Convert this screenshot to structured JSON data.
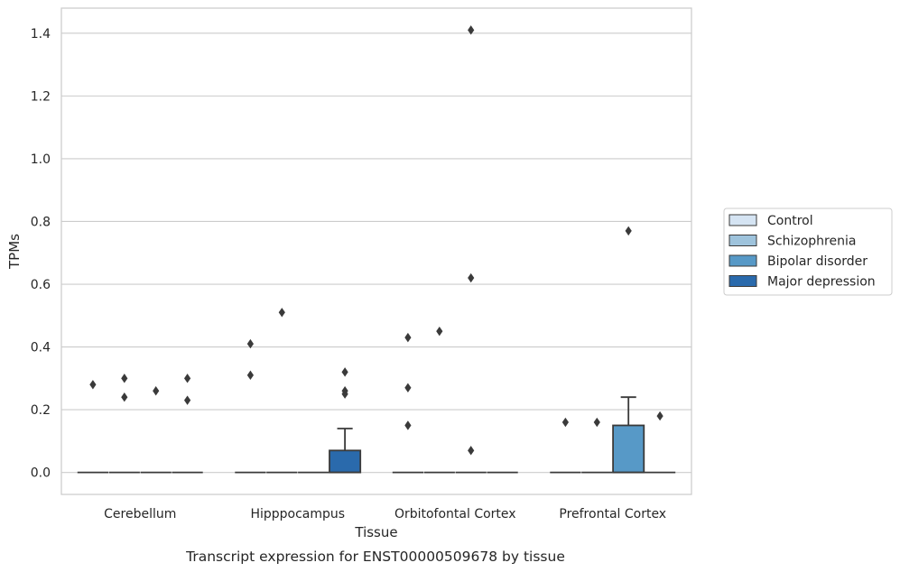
{
  "chart_data": {
    "type": "box",
    "xlabel": "Tissue",
    "ylabel": "TPMs",
    "caption": "Transcript expression for ENST00000509678 by tissue",
    "categories": [
      "Cerebellum",
      "Hipppocampus",
      "Orbitofontal Cortex",
      "Prefrontal Cortex"
    ],
    "ylim": [
      -0.07,
      1.48
    ],
    "yticks": [
      0.0,
      0.2,
      0.4,
      0.6,
      0.8,
      1.0,
      1.2,
      1.4
    ],
    "ytick_labels": [
      "0.0",
      "0.2",
      "0.4",
      "0.6",
      "0.8",
      "1.0",
      "1.2",
      "1.4"
    ],
    "grid": "horizontal",
    "legend_placement": "right",
    "series": [
      {
        "name": "Control",
        "color": "#d5e4f3",
        "boxes": [
          {
            "q1": 0,
            "median": 0,
            "q3": 0,
            "whisker_low": 0,
            "whisker_high": 0,
            "outliers": [
              0.28
            ]
          },
          {
            "q1": 0,
            "median": 0,
            "q3": 0,
            "whisker_low": 0,
            "whisker_high": 0,
            "outliers": [
              0.41,
              0.31
            ]
          },
          {
            "q1": 0,
            "median": 0,
            "q3": 0,
            "whisker_low": 0,
            "whisker_high": 0,
            "outliers": [
              0.43,
              0.27,
              0.15
            ]
          },
          {
            "q1": 0,
            "median": 0,
            "q3": 0,
            "whisker_low": 0,
            "whisker_high": 0,
            "outliers": [
              0.16
            ]
          }
        ]
      },
      {
        "name": "Schizophrenia",
        "color": "#9ec3dc",
        "boxes": [
          {
            "q1": 0,
            "median": 0,
            "q3": 0,
            "whisker_low": 0,
            "whisker_high": 0,
            "outliers": [
              0.3,
              0.24
            ]
          },
          {
            "q1": 0,
            "median": 0,
            "q3": 0,
            "whisker_low": 0,
            "whisker_high": 0,
            "outliers": [
              0.51
            ]
          },
          {
            "q1": 0,
            "median": 0,
            "q3": 0,
            "whisker_low": 0,
            "whisker_high": 0,
            "outliers": [
              0.45
            ]
          },
          {
            "q1": 0,
            "median": 0,
            "q3": 0,
            "whisker_low": 0,
            "whisker_high": 0,
            "outliers": [
              0.16
            ]
          }
        ]
      },
      {
        "name": "Bipolar disorder",
        "color": "#5799c7",
        "boxes": [
          {
            "q1": 0,
            "median": 0,
            "q3": 0,
            "whisker_low": 0,
            "whisker_high": 0,
            "outliers": [
              0.26
            ]
          },
          {
            "q1": 0,
            "median": 0,
            "q3": 0,
            "whisker_low": 0,
            "whisker_high": 0,
            "outliers": []
          },
          {
            "q1": 0,
            "median": 0,
            "q3": 0,
            "whisker_low": 0,
            "whisker_high": 0,
            "outliers": [
              1.41,
              0.62,
              0.07
            ]
          },
          {
            "q1": 0,
            "median": 0,
            "q3": 0.15,
            "whisker_low": 0,
            "whisker_high": 0.24,
            "outliers": [
              0.77
            ]
          }
        ]
      },
      {
        "name": "Major depression",
        "color": "#2a6aac",
        "boxes": [
          {
            "q1": 0,
            "median": 0,
            "q3": 0,
            "whisker_low": 0,
            "whisker_high": 0,
            "outliers": [
              0.3,
              0.23
            ]
          },
          {
            "q1": 0,
            "median": 0,
            "q3": 0.07,
            "whisker_low": 0,
            "whisker_high": 0.14,
            "outliers": [
              0.32,
              0.26,
              0.25
            ]
          },
          {
            "q1": 0,
            "median": 0,
            "q3": 0,
            "whisker_low": 0,
            "whisker_high": 0,
            "outliers": []
          },
          {
            "q1": 0,
            "median": 0,
            "q3": 0,
            "whisker_low": 0,
            "whisker_high": 0,
            "outliers": [
              0.18
            ]
          }
        ]
      }
    ]
  }
}
